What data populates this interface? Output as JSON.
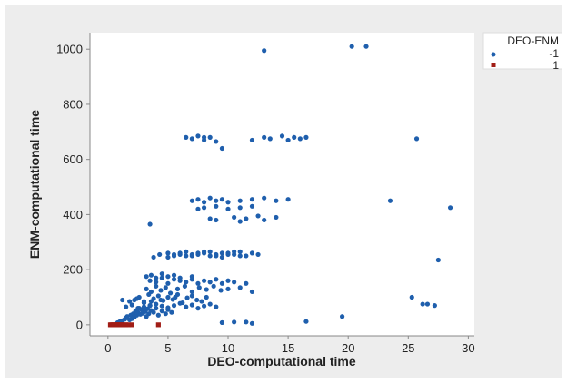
{
  "chart_data": {
    "type": "scatter",
    "xlabel": "DEO-computational time",
    "ylabel": "ENM-computational time",
    "xlim": [
      -1.5,
      30.5
    ],
    "ylim": [
      -40,
      1060
    ],
    "xticks": [
      0,
      5,
      10,
      15,
      20,
      25,
      30
    ],
    "yticks": [
      0,
      200,
      400,
      600,
      800,
      1000
    ],
    "xtick_labels": [
      "0",
      "5",
      "10",
      "15",
      "20",
      "25",
      "30"
    ],
    "ytick_labels": [
      "0",
      "200",
      "400",
      "600",
      "800",
      "1000"
    ],
    "grid": false,
    "legend": {
      "title": "DEO-ENM",
      "placement": "right"
    },
    "colors": {
      "series_neg": "#1f5fad",
      "series_pos": "#a11d16",
      "plot_bg": "#ffffff",
      "figure_bg": "#ededed"
    },
    "series": [
      {
        "name": "-1",
        "marker": "circle",
        "x": [
          0.8,
          1.0,
          1.2,
          1.4,
          1.5,
          1.6,
          1.8,
          1.9,
          2.0,
          2.1,
          2.2,
          2.3,
          2.4,
          2.5,
          2.6,
          2.7,
          2.8,
          2.9,
          3.0,
          3.1,
          3.2,
          3.3,
          3.4,
          3.5,
          3.6,
          3.8,
          4.0,
          4.2,
          4.5,
          4.8,
          5.0,
          5.3,
          1.5,
          2.0,
          2.5,
          3.0,
          3.5,
          4.0,
          4.5,
          5.0,
          5.5,
          6.0,
          6.5,
          7.0,
          7.5,
          8.0,
          8.5,
          9.0,
          2.2,
          2.6,
          3.0,
          3.4,
          3.8,
          4.2,
          4.6,
          5.0,
          5.4,
          5.8,
          6.2,
          6.6,
          7.0,
          7.4,
          7.8,
          8.2,
          3.2,
          3.6,
          4.0,
          4.4,
          4.8,
          5.2,
          5.8,
          6.4,
          7.0,
          7.6,
          8.2,
          8.8,
          9.4,
          10.0,
          11.0,
          12.0,
          3.5,
          4.0,
          4.5,
          5.0,
          5.5,
          6.0,
          6.5,
          7.0,
          7.5,
          8.0,
          8.5,
          9.0,
          9.5,
          10.0,
          10.5,
          11.5,
          3.2,
          3.6,
          4.0,
          4.5,
          5.0,
          5.5,
          6.0,
          7.0,
          3.8,
          4.3,
          5.0,
          5.5,
          6.0,
          6.5,
          7.0,
          7.5,
          8.0,
          8.5,
          9.0,
          9.5,
          10.0,
          10.5,
          11.0,
          5.0,
          5.5,
          6.0,
          6.5,
          7.0,
          7.5,
          8.0,
          8.5,
          9.0,
          9.5,
          10.0,
          10.5,
          11.0,
          11.5,
          12.0,
          12.5,
          7.0,
          7.5,
          8.0,
          8.5,
          9.0,
          9.5,
          10.0,
          11.0,
          12.0,
          13.0,
          14.0,
          15.0,
          7.5,
          8.0,
          9.0,
          10.0,
          11.0,
          12.0,
          8.5,
          9.0,
          10.5,
          11.0,
          11.5,
          12.5,
          13.0,
          14.0,
          6.5,
          7.0,
          7.5,
          8.0,
          8.5,
          9.0,
          9.5,
          12.0,
          13.0,
          13.5,
          14.5,
          15.0,
          15.5,
          16.0,
          16.5,
          8.0,
          9.5,
          11.5,
          3.5,
          9.5,
          10.5,
          12.0,
          16.5,
          19.5,
          13.0,
          20.3,
          21.5,
          25.7,
          23.5,
          28.5,
          27.5,
          25.3,
          26.2,
          26.6,
          27.2,
          1.2,
          1.8,
          2.4,
          3.0,
          3.6,
          4.4,
          5.6
        ],
        "y": [
          8,
          12,
          15,
          20,
          25,
          30,
          18,
          35,
          22,
          40,
          28,
          50,
          35,
          45,
          60,
          38,
          55,
          42,
          65,
          48,
          30,
          58,
          40,
          70,
          52,
          45,
          60,
          35,
          50,
          40,
          55,
          45,
          65,
          72,
          60,
          80,
          70,
          75,
          68,
          62,
          70,
          78,
          65,
          72,
          60,
          68,
          75,
          65,
          90,
          100,
          85,
          110,
          95,
          105,
          88,
          100,
          92,
          110,
          80,
          98,
          105,
          90,
          85,
          100,
          130,
          120,
          140,
          125,
          135,
          115,
          130,
          140,
          120,
          135,
          128,
          140,
          125,
          130,
          135,
          120,
          160,
          155,
          170,
          150,
          165,
          160,
          155,
          165,
          150,
          160,
          155,
          165,
          150,
          160,
          155,
          150,
          175,
          180,
          170,
          185,
          175,
          180,
          170,
          175,
          245,
          255,
          260,
          250,
          255,
          265,
          250,
          255,
          260,
          265,
          250,
          260,
          255,
          265,
          250,
          245,
          255,
          260,
          250,
          255,
          260,
          265,
          250,
          255,
          245,
          260,
          255,
          265,
          250,
          260,
          255,
          450,
          455,
          445,
          460,
          450,
          455,
          445,
          450,
          455,
          460,
          450,
          455,
          420,
          425,
          430,
          420,
          425,
          430,
          385,
          380,
          390,
          375,
          385,
          395,
          380,
          390,
          680,
          675,
          685,
          670,
          680,
          665,
          640,
          670,
          680,
          675,
          685,
          670,
          680,
          675,
          680,
          680,
          8,
          10,
          365,
          8,
          10,
          5,
          12,
          30,
          995,
          1010,
          1010,
          675,
          450,
          425,
          235,
          100,
          75,
          75,
          70,
          90,
          85,
          95,
          80,
          85,
          90,
          100
        ]
      },
      {
        "name": "1",
        "marker": "square",
        "x": [
          0.2,
          0.3,
          0.4,
          0.5,
          0.6,
          0.7,
          0.8,
          0.9,
          1.0,
          1.1,
          1.2,
          1.3,
          1.5,
          1.7,
          2.0,
          4.2
        ],
        "y": [
          0,
          0,
          0,
          0,
          0,
          0,
          0,
          0,
          0,
          0,
          0,
          0,
          0,
          0,
          0,
          0
        ]
      }
    ]
  }
}
